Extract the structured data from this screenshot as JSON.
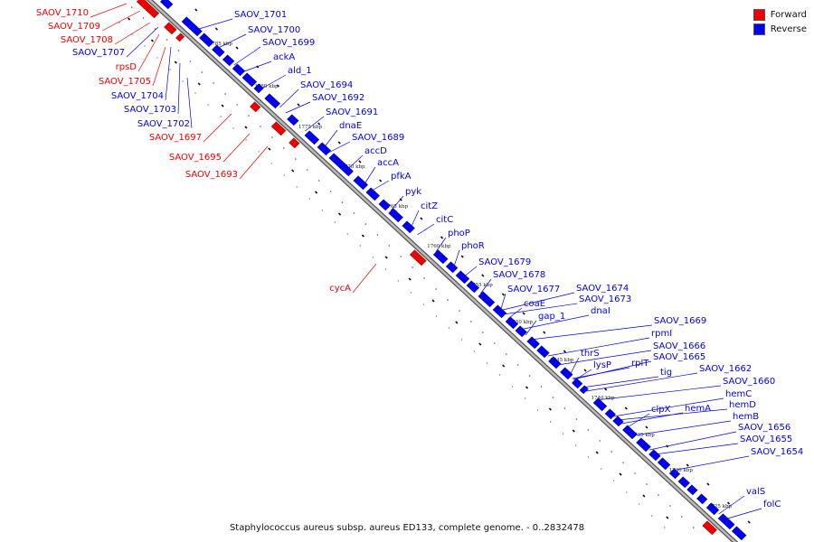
{
  "caption": "Staphylococcus aureus subsp. aureus ED133, complete genome. - 0..2832478",
  "legend": [
    {
      "label": "Forward",
      "color": "#ee0000"
    },
    {
      "label": "Reverse",
      "color": "#0000ee"
    }
  ],
  "colors": {
    "forward": "#ee0000",
    "reverse": "#0000ee",
    "backbone": "#888888"
  },
  "ticks": [
    "1785 kbp",
    "1780 kbp",
    "1775 kbp",
    "1770 kbp",
    "1765 kbp",
    "1760 kbp",
    "1755 kbp",
    "1750 kbp",
    "1745 kbp",
    "1740 kbp",
    "1735 kbp",
    "1730 kbp",
    "1725 kbp"
  ],
  "genes_reverse": [
    {
      "name": "SAOV_1701"
    },
    {
      "name": "SAOV_1700"
    },
    {
      "name": "SAOV_1699"
    },
    {
      "name": "ackA"
    },
    {
      "name": "ald_1"
    },
    {
      "name": "SAOV_1694"
    },
    {
      "name": "SAOV_1692"
    },
    {
      "name": "SAOV_1691"
    },
    {
      "name": "dnaE"
    },
    {
      "name": "SAOV_1689"
    },
    {
      "name": "accD"
    },
    {
      "name": "accA"
    },
    {
      "name": "pfkA"
    },
    {
      "name": "pyk"
    },
    {
      "name": "citZ"
    },
    {
      "name": "citC"
    },
    {
      "name": "phoP"
    },
    {
      "name": "phoR"
    },
    {
      "name": "SAOV_1679"
    },
    {
      "name": "SAOV_1678"
    },
    {
      "name": "SAOV_1677"
    },
    {
      "name": "coaE"
    },
    {
      "name": "gap_1"
    },
    {
      "name": "SAOV_1674"
    },
    {
      "name": "SAOV_1673"
    },
    {
      "name": "dnaI"
    },
    {
      "name": "thrS"
    },
    {
      "name": "lysP"
    },
    {
      "name": "SAOV_1669"
    },
    {
      "name": "rpmI"
    },
    {
      "name": "rplT"
    },
    {
      "name": "SAOV_1666"
    },
    {
      "name": "SAOV_1665"
    },
    {
      "name": "tig"
    },
    {
      "name": "clpX"
    },
    {
      "name": "SAOV_1662"
    },
    {
      "name": "hemA"
    },
    {
      "name": "SAOV_1660"
    },
    {
      "name": "hemC"
    },
    {
      "name": "hemD"
    },
    {
      "name": "hemB"
    },
    {
      "name": "SAOV_1656"
    },
    {
      "name": "SAOV_1655"
    },
    {
      "name": "SAOV_1654"
    },
    {
      "name": "valS"
    },
    {
      "name": "folC"
    }
  ],
  "genes_left_reverse": [
    {
      "name": "SAOV_1707"
    },
    {
      "name": "SAOV_1704"
    },
    {
      "name": "SAOV_1703"
    },
    {
      "name": "SAOV_1702"
    }
  ],
  "genes_forward": [
    {
      "name": "SAOV_1710"
    },
    {
      "name": "SAOV_1709"
    },
    {
      "name": "SAOV_1708"
    },
    {
      "name": "rpsD"
    },
    {
      "name": "SAOV_1705"
    },
    {
      "name": "SAOV_1697"
    },
    {
      "name": "SAOV_1695"
    },
    {
      "name": "SAOV_1693"
    },
    {
      "name": "cycA"
    }
  ]
}
